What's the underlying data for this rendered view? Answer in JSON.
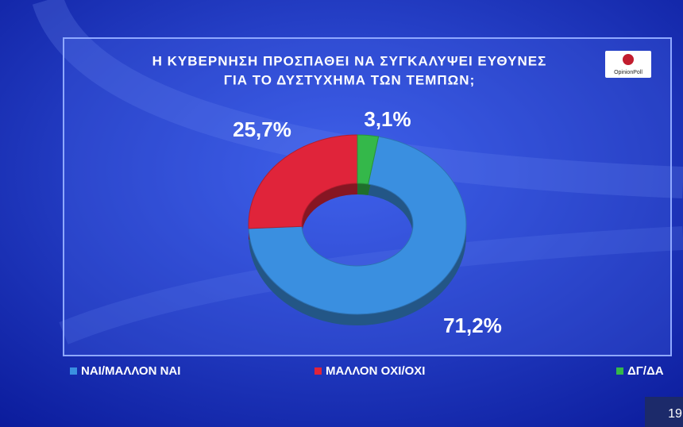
{
  "chart_data": {
    "type": "donut",
    "title_lines": [
      "Η ΚΥΒΕΡΝΗΣΗ ΠΡΟΣΠΑΘΕΙ ΝΑ ΣΥΓΚΑΛΥΨΕΙ ΕΥΘΥΝΕΣ",
      "ΓΙΑ ΤΟ ΔΥΣΤΥΧΗΜΑ ΤΩΝ ΤΕΜΠΩΝ;"
    ],
    "categories": [
      "ΝΑΙ/ΜΑΛΛΟΝ ΝΑΙ",
      "ΜΑΛΛΟΝ ΟΧΙ/ΟΧΙ",
      "ΔΓ/ΔΑ"
    ],
    "values": [
      71.2,
      25.7,
      3.1
    ],
    "value_labels": [
      "71,2%",
      "25,7%",
      "3,1%"
    ],
    "colors": [
      "#3a8fe0",
      "#e0243a",
      "#34b84a"
    ],
    "logo": "OpinionPoll",
    "corner_label": "19"
  }
}
